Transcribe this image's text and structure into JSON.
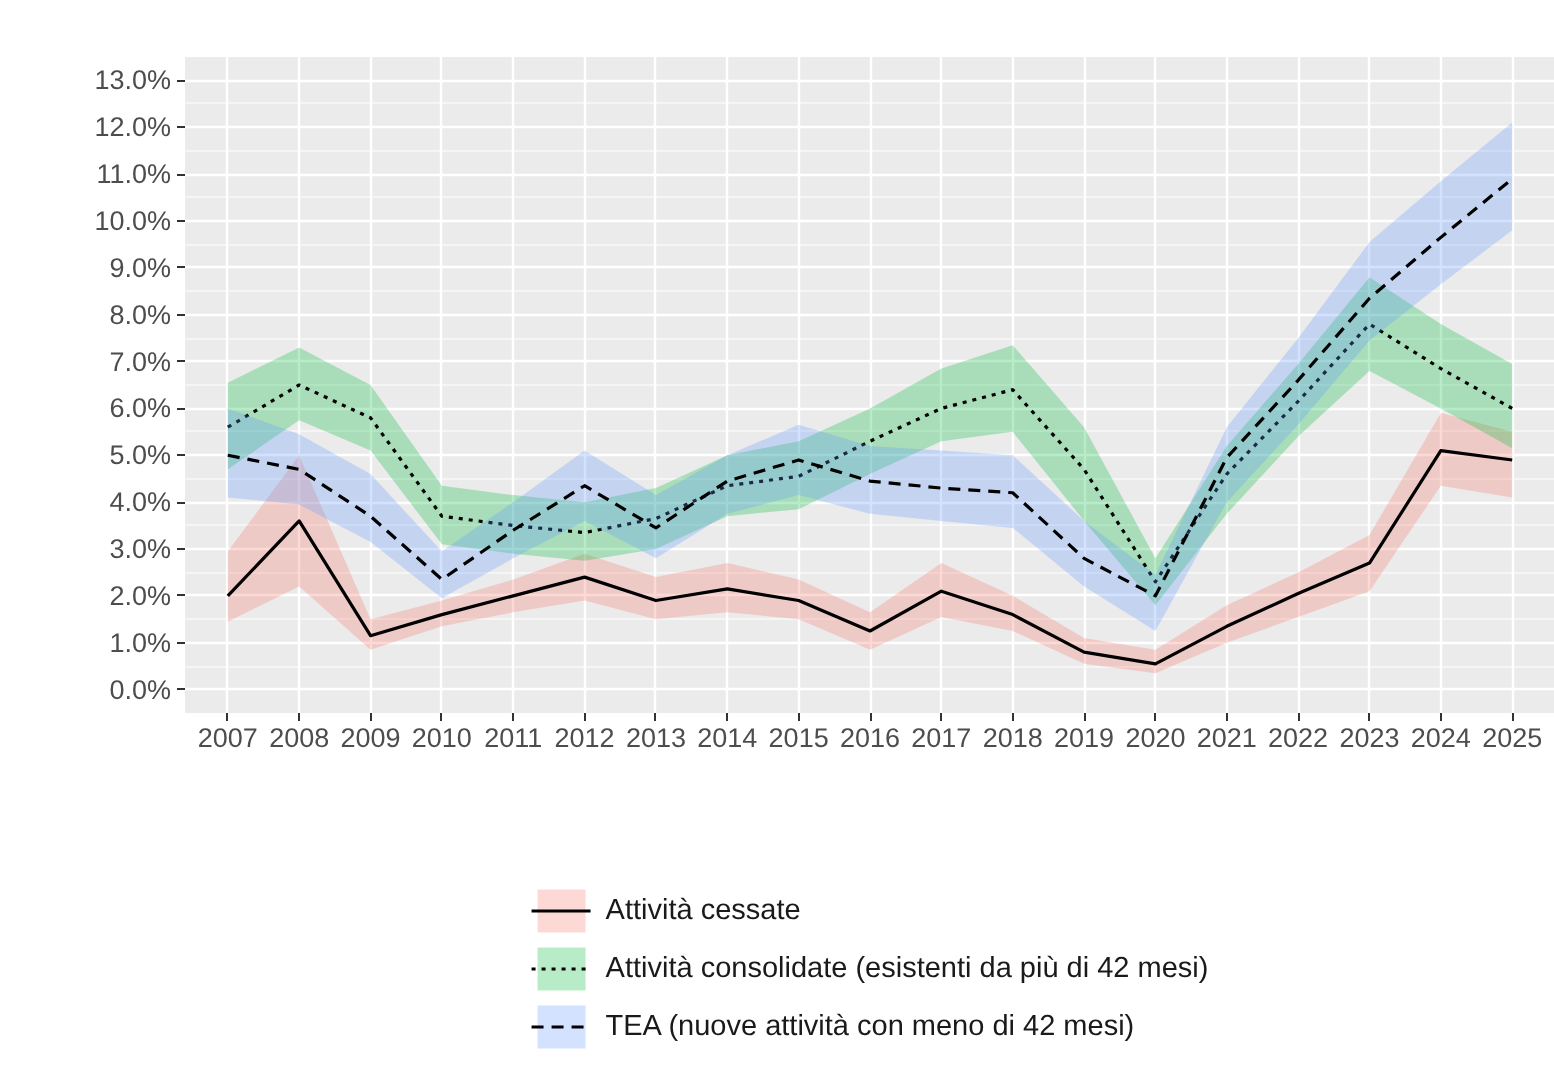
{
  "chart_data": {
    "type": "line",
    "categories": [
      "2007",
      "2008",
      "2009",
      "2010",
      "2011",
      "2012",
      "2013",
      "2014",
      "2015",
      "2016",
      "2017",
      "2018",
      "2019",
      "2020",
      "2021",
      "2022",
      "2023",
      "2024",
      "2025"
    ],
    "series": [
      {
        "name": "Attività cessate",
        "color": "#000000",
        "line_style": "solid",
        "values": [
          2.0,
          3.6,
          1.15,
          1.6,
          2.0,
          2.4,
          1.9,
          2.15,
          1.9,
          1.25,
          2.1,
          1.6,
          0.8,
          0.55,
          1.35,
          2.05,
          2.7,
          5.1,
          4.9
        ],
        "lower": [
          1.45,
          2.2,
          0.85,
          1.35,
          1.65,
          1.9,
          1.5,
          1.65,
          1.5,
          0.85,
          1.55,
          1.25,
          0.55,
          0.35,
          1.0,
          1.55,
          2.1,
          4.35,
          4.1
        ],
        "upper": [
          2.95,
          5.0,
          1.5,
          1.9,
          2.35,
          2.9,
          2.4,
          2.7,
          2.35,
          1.65,
          2.7,
          2.0,
          1.1,
          0.85,
          1.8,
          2.5,
          3.3,
          5.9,
          5.5
        ]
      },
      {
        "name": "Attività consolidate (esistenti da più di 42 mesi)",
        "color": "#000000",
        "line_style": "dotted",
        "values": [
          5.6,
          6.5,
          5.8,
          3.7,
          3.5,
          3.35,
          3.65,
          4.35,
          4.55,
          5.3,
          6.0,
          6.4,
          4.7,
          2.3,
          4.6,
          6.15,
          7.8,
          6.85,
          6.0
        ],
        "lower": [
          4.7,
          5.75,
          5.1,
          3.1,
          2.9,
          2.75,
          3.0,
          3.7,
          3.85,
          4.6,
          5.3,
          5.5,
          3.6,
          1.8,
          3.75,
          5.4,
          6.8,
          6.0,
          5.15
        ],
        "upper": [
          6.55,
          7.3,
          6.5,
          4.35,
          4.15,
          4.0,
          4.3,
          5.0,
          5.3,
          6.0,
          6.85,
          7.35,
          5.6,
          2.8,
          5.2,
          6.95,
          8.8,
          7.8,
          6.95
        ]
      },
      {
        "name": "TEA (nuove attività con meno di 42 mesi)",
        "color": "#000000",
        "line_style": "dashed",
        "values": [
          5.0,
          4.7,
          3.7,
          2.35,
          3.4,
          4.35,
          3.45,
          4.45,
          4.9,
          4.45,
          4.3,
          4.2,
          2.8,
          2.0,
          4.95,
          6.6,
          8.35,
          9.65,
          10.9
        ],
        "lower": [
          4.1,
          3.95,
          3.15,
          1.95,
          2.8,
          3.6,
          2.8,
          3.75,
          4.15,
          3.75,
          3.6,
          3.45,
          2.2,
          1.25,
          4.0,
          5.65,
          7.45,
          8.65,
          9.8
        ],
        "upper": [
          6.0,
          5.45,
          4.6,
          2.95,
          4.0,
          5.1,
          4.15,
          5.0,
          5.65,
          5.2,
          5.1,
          5.0,
          3.6,
          2.45,
          5.6,
          7.5,
          9.55,
          10.85,
          12.1
        ]
      }
    ],
    "ylim": [
      -0.5,
      13.5
    ],
    "yticks": [
      {
        "value": 0,
        "label": "0.0%"
      },
      {
        "value": 1,
        "label": "1.0%"
      },
      {
        "value": 2,
        "label": "2.0%"
      },
      {
        "value": 3,
        "label": "3.0%"
      },
      {
        "value": 4,
        "label": "4.0%"
      },
      {
        "value": 5,
        "label": "5.0%"
      },
      {
        "value": 6,
        "label": "6.0%"
      },
      {
        "value": 7,
        "label": "7.0%"
      },
      {
        "value": 8,
        "label": "8.0%"
      },
      {
        "value": 9,
        "label": "9.0%"
      },
      {
        "value": 10,
        "label": "10.0%"
      },
      {
        "value": 11,
        "label": "11.0%"
      },
      {
        "value": 12,
        "label": "12.0%"
      },
      {
        "value": 13,
        "label": "13.0%"
      }
    ],
    "grid": true,
    "legend": "bottom"
  }
}
